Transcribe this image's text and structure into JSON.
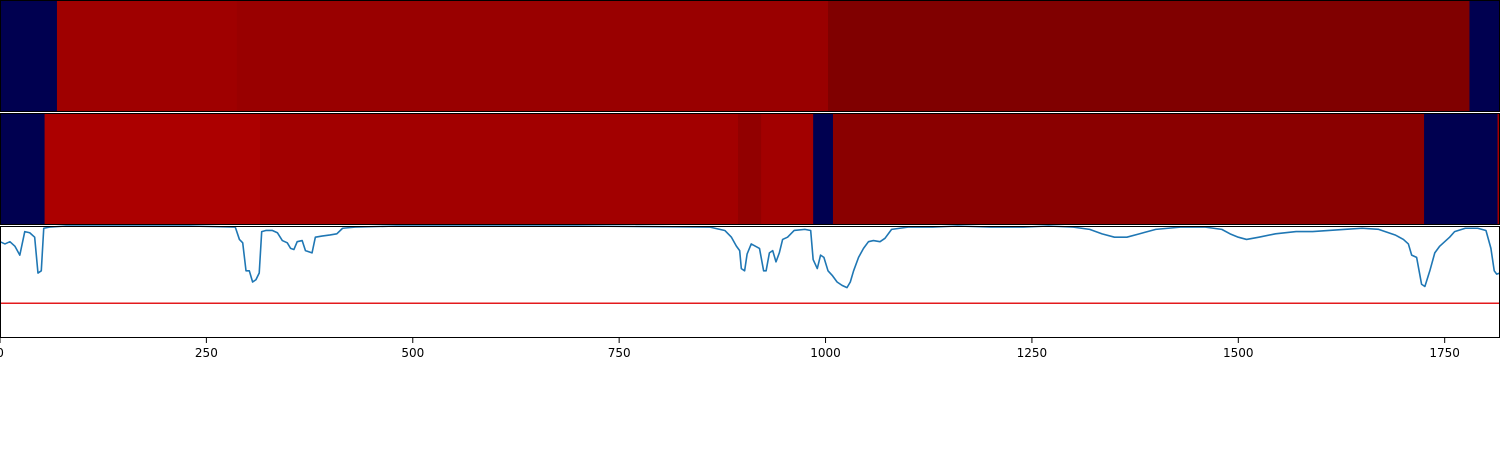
{
  "chart_data": {
    "type": "heatmap",
    "title": "",
    "xlabel": "",
    "ylabel": "",
    "xlim": [
      0,
      1817
    ],
    "x_ticks": [
      0,
      250,
      500,
      750,
      1000,
      1250,
      1500,
      1750
    ],
    "x_tick_labels": [
      "0",
      "250",
      "500",
      "750",
      "1000",
      "1250",
      "1500",
      "1750"
    ],
    "rows": [
      {
        "segments": [
          {
            "start": 0,
            "end": 69,
            "color": "#000050"
          },
          {
            "start": 69,
            "end": 287,
            "color": "#9f0000"
          },
          {
            "start": 287,
            "end": 1003,
            "color": "#990000"
          },
          {
            "start": 1003,
            "end": 1780,
            "color": "#800000"
          },
          {
            "start": 1780,
            "end": 1817,
            "color": "#000050"
          }
        ]
      },
      {
        "segments": [
          {
            "start": 0,
            "end": 54,
            "color": "#000050"
          },
          {
            "start": 54,
            "end": 315,
            "color": "#ac0000"
          },
          {
            "start": 315,
            "end": 894,
            "color": "#a20000"
          },
          {
            "start": 894,
            "end": 922,
            "color": "#920000"
          },
          {
            "start": 922,
            "end": 985,
            "color": "#a20000"
          },
          {
            "start": 985,
            "end": 1009,
            "color": "#000050"
          },
          {
            "start": 1009,
            "end": 1725,
            "color": "#8a0000"
          },
          {
            "start": 1725,
            "end": 1814,
            "color": "#000050"
          },
          {
            "start": 1814,
            "end": 1817,
            "color": "#a20000"
          }
        ]
      }
    ],
    "line_panel": {
      "ylim": [
        0,
        1
      ],
      "threshold": 0.31,
      "threshold_color": "#e31a1c",
      "line_color": "#1f77b4",
      "points": [
        [
          0,
          0.86
        ],
        [
          6,
          0.84
        ],
        [
          12,
          0.86
        ],
        [
          18,
          0.82
        ],
        [
          24,
          0.74
        ],
        [
          30,
          0.95
        ],
        [
          36,
          0.94
        ],
        [
          42,
          0.9
        ],
        [
          46,
          0.58
        ],
        [
          50,
          0.6
        ],
        [
          53,
          0.98
        ],
        [
          60,
          0.99
        ],
        [
          80,
          1.0
        ],
        [
          150,
          1.0
        ],
        [
          230,
          1.0
        ],
        [
          285,
          0.99
        ],
        [
          290,
          0.88
        ],
        [
          294,
          0.85
        ],
        [
          298,
          0.6
        ],
        [
          302,
          0.6
        ],
        [
          306,
          0.5
        ],
        [
          310,
          0.52
        ],
        [
          314,
          0.58
        ],
        [
          317,
          0.95
        ],
        [
          322,
          0.96
        ],
        [
          330,
          0.96
        ],
        [
          336,
          0.94
        ],
        [
          342,
          0.87
        ],
        [
          348,
          0.85
        ],
        [
          352,
          0.8
        ],
        [
          356,
          0.79
        ],
        [
          360,
          0.86
        ],
        [
          366,
          0.87
        ],
        [
          370,
          0.78
        ],
        [
          374,
          0.77
        ],
        [
          378,
          0.76
        ],
        [
          382,
          0.9
        ],
        [
          390,
          0.91
        ],
        [
          400,
          0.92
        ],
        [
          408,
          0.93
        ],
        [
          415,
          0.98
        ],
        [
          430,
          0.99
        ],
        [
          480,
          1.0
        ],
        [
          600,
          1.0
        ],
        [
          700,
          1.0
        ],
        [
          860,
          0.99
        ],
        [
          878,
          0.96
        ],
        [
          886,
          0.9
        ],
        [
          892,
          0.82
        ],
        [
          896,
          0.78
        ],
        [
          898,
          0.62
        ],
        [
          902,
          0.6
        ],
        [
          905,
          0.75
        ],
        [
          910,
          0.84
        ],
        [
          915,
          0.82
        ],
        [
          920,
          0.8
        ],
        [
          925,
          0.6
        ],
        [
          928,
          0.6
        ],
        [
          932,
          0.76
        ],
        [
          936,
          0.78
        ],
        [
          940,
          0.68
        ],
        [
          944,
          0.76
        ],
        [
          948,
          0.88
        ],
        [
          954,
          0.9
        ],
        [
          962,
          0.96
        ],
        [
          975,
          0.97
        ],
        [
          982,
          0.96
        ],
        [
          985,
          0.7
        ],
        [
          990,
          0.62
        ],
        [
          994,
          0.74
        ],
        [
          998,
          0.72
        ],
        [
          1003,
          0.6
        ],
        [
          1008,
          0.56
        ],
        [
          1014,
          0.5
        ],
        [
          1020,
          0.47
        ],
        [
          1026,
          0.45
        ],
        [
          1030,
          0.5
        ],
        [
          1034,
          0.6
        ],
        [
          1040,
          0.72
        ],
        [
          1046,
          0.8
        ],
        [
          1052,
          0.86
        ],
        [
          1058,
          0.87
        ],
        [
          1066,
          0.86
        ],
        [
          1072,
          0.89
        ],
        [
          1080,
          0.97
        ],
        [
          1090,
          0.98
        ],
        [
          1100,
          0.99
        ],
        [
          1130,
          0.99
        ],
        [
          1160,
          1.0
        ],
        [
          1200,
          0.99
        ],
        [
          1240,
          0.99
        ],
        [
          1270,
          1.0
        ],
        [
          1300,
          0.99
        ],
        [
          1320,
          0.97
        ],
        [
          1335,
          0.93
        ],
        [
          1350,
          0.9
        ],
        [
          1365,
          0.9
        ],
        [
          1380,
          0.93
        ],
        [
          1400,
          0.97
        ],
        [
          1430,
          0.99
        ],
        [
          1460,
          0.99
        ],
        [
          1480,
          0.97
        ],
        [
          1490,
          0.93
        ],
        [
          1500,
          0.9
        ],
        [
          1510,
          0.88
        ],
        [
          1525,
          0.9
        ],
        [
          1545,
          0.93
        ],
        [
          1570,
          0.95
        ],
        [
          1590,
          0.95
        ],
        [
          1610,
          0.96
        ],
        [
          1630,
          0.97
        ],
        [
          1650,
          0.98
        ],
        [
          1670,
          0.97
        ],
        [
          1690,
          0.92
        ],
        [
          1700,
          0.88
        ],
        [
          1706,
          0.84
        ],
        [
          1710,
          0.74
        ],
        [
          1716,
          0.72
        ],
        [
          1719,
          0.6
        ],
        [
          1722,
          0.48
        ],
        [
          1726,
          0.46
        ],
        [
          1732,
          0.6
        ],
        [
          1738,
          0.76
        ],
        [
          1744,
          0.82
        ],
        [
          1750,
          0.86
        ],
        [
          1756,
          0.9
        ],
        [
          1762,
          0.95
        ],
        [
          1775,
          0.98
        ],
        [
          1790,
          0.98
        ],
        [
          1800,
          0.96
        ],
        [
          1806,
          0.8
        ],
        [
          1810,
          0.6
        ],
        [
          1813,
          0.57
        ],
        [
          1817,
          0.58
        ]
      ]
    }
  }
}
